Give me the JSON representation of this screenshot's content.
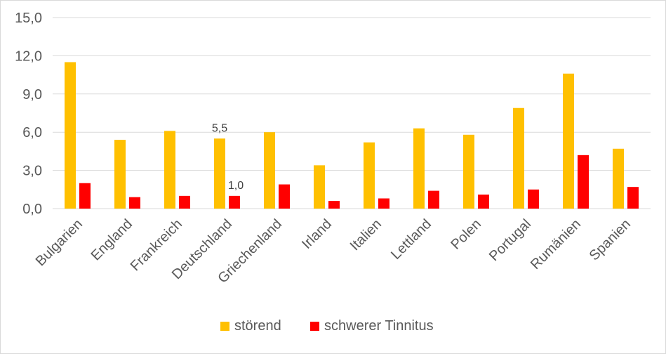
{
  "chart_data": {
    "type": "bar",
    "categories": [
      "Bulgarien",
      "England",
      "Frankreich",
      "Deutschland",
      "Griechenland",
      "Irland",
      "Italien",
      "Lettland",
      "Polen",
      "Portugal",
      "Rumänien",
      "Spanien"
    ],
    "series": [
      {
        "name": "störend",
        "color": "#FFC000",
        "values": [
          11.5,
          5.4,
          6.1,
          5.5,
          6.0,
          3.4,
          5.2,
          6.3,
          5.8,
          7.9,
          10.6,
          4.7
        ]
      },
      {
        "name": "schwerer Tinnitus",
        "color": "#FF0000",
        "values": [
          2.0,
          0.9,
          1.0,
          1.0,
          1.9,
          0.6,
          0.8,
          1.4,
          1.1,
          1.5,
          4.2,
          1.7
        ]
      }
    ],
    "visible_data_labels": [
      {
        "category": "Deutschland",
        "series": "störend",
        "text": "5,5"
      },
      {
        "category": "Deutschland",
        "series": "schwerer Tinnitus",
        "text": "1,0"
      }
    ],
    "yticks": [
      "0,0",
      "3,0",
      "6,0",
      "9,0",
      "12,0",
      "15,0"
    ],
    "ylim": [
      0,
      15
    ],
    "grid": true,
    "legend_position": "bottom"
  }
}
